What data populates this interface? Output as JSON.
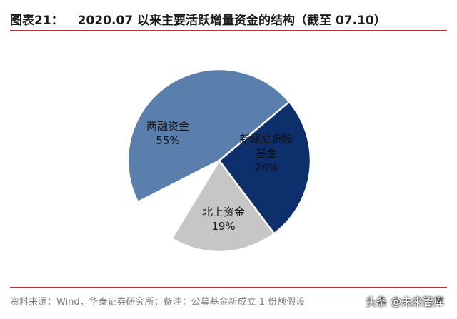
{
  "header": {
    "figure_label": "图表21：",
    "title_text": "2020.07 以来主要活跃增量资金的结构（截至 07.10）"
  },
  "chart_data": {
    "type": "pie",
    "title": "2020.07 以来主要活跃增量资金的结构（截至 07.10）",
    "slices": [
      {
        "name": "两融资金",
        "value": 55,
        "label_lines": [
          "两融资金",
          "55%"
        ],
        "color": "#5b7fac"
      },
      {
        "name": "新成立偏股基金",
        "value": 26,
        "label_lines": [
          "新成立偏股",
          "基金",
          "26%"
        ],
        "color": "#0d2f6b"
      },
      {
        "name": "北上资金",
        "value": 19,
        "label_lines": [
          "北上资金",
          "19%"
        ],
        "color": "#c6c6c6"
      }
    ]
  },
  "footer": {
    "source_text": "资料来源：Wind，华泰证券研究所；备注：公募基金新成立 1 份额假设",
    "watermark_text": "头条 @未来智库"
  },
  "colors": {
    "accent_rule": "#b0302a"
  }
}
